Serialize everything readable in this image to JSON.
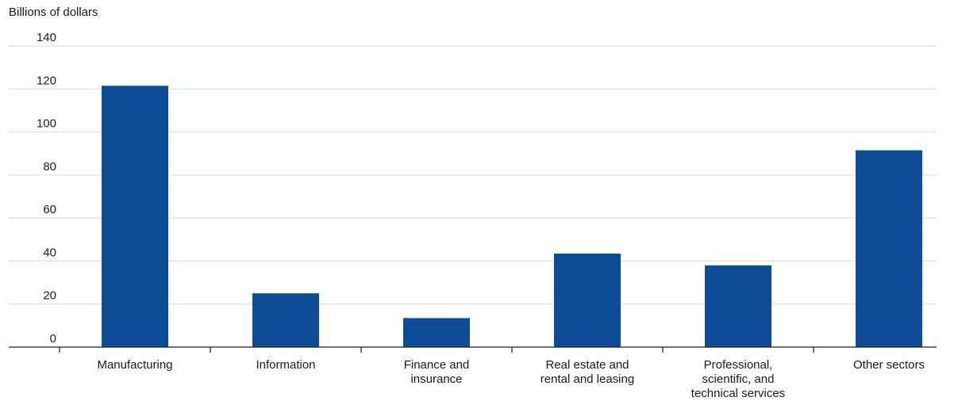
{
  "chart_data": {
    "type": "bar",
    "ylabel": "Billions of dollars",
    "xlabel": "",
    "title": "",
    "ylim": [
      0,
      140
    ],
    "yticks": [
      0,
      20,
      40,
      60,
      80,
      100,
      120,
      140
    ],
    "grid": true,
    "categories": [
      [
        "Manufacturing"
      ],
      [
        "Information"
      ],
      [
        "Finance and",
        "insurance"
      ],
      [
        "Real estate and",
        "rental and leasing"
      ],
      [
        "Professional,",
        "scientific, and",
        "technical services"
      ],
      [
        "Other sectors"
      ]
    ],
    "values": [
      121.5,
      25.0,
      13.5,
      43.5,
      38.0,
      91.5
    ],
    "colors": {
      "bar": "#0e4d95"
    }
  }
}
